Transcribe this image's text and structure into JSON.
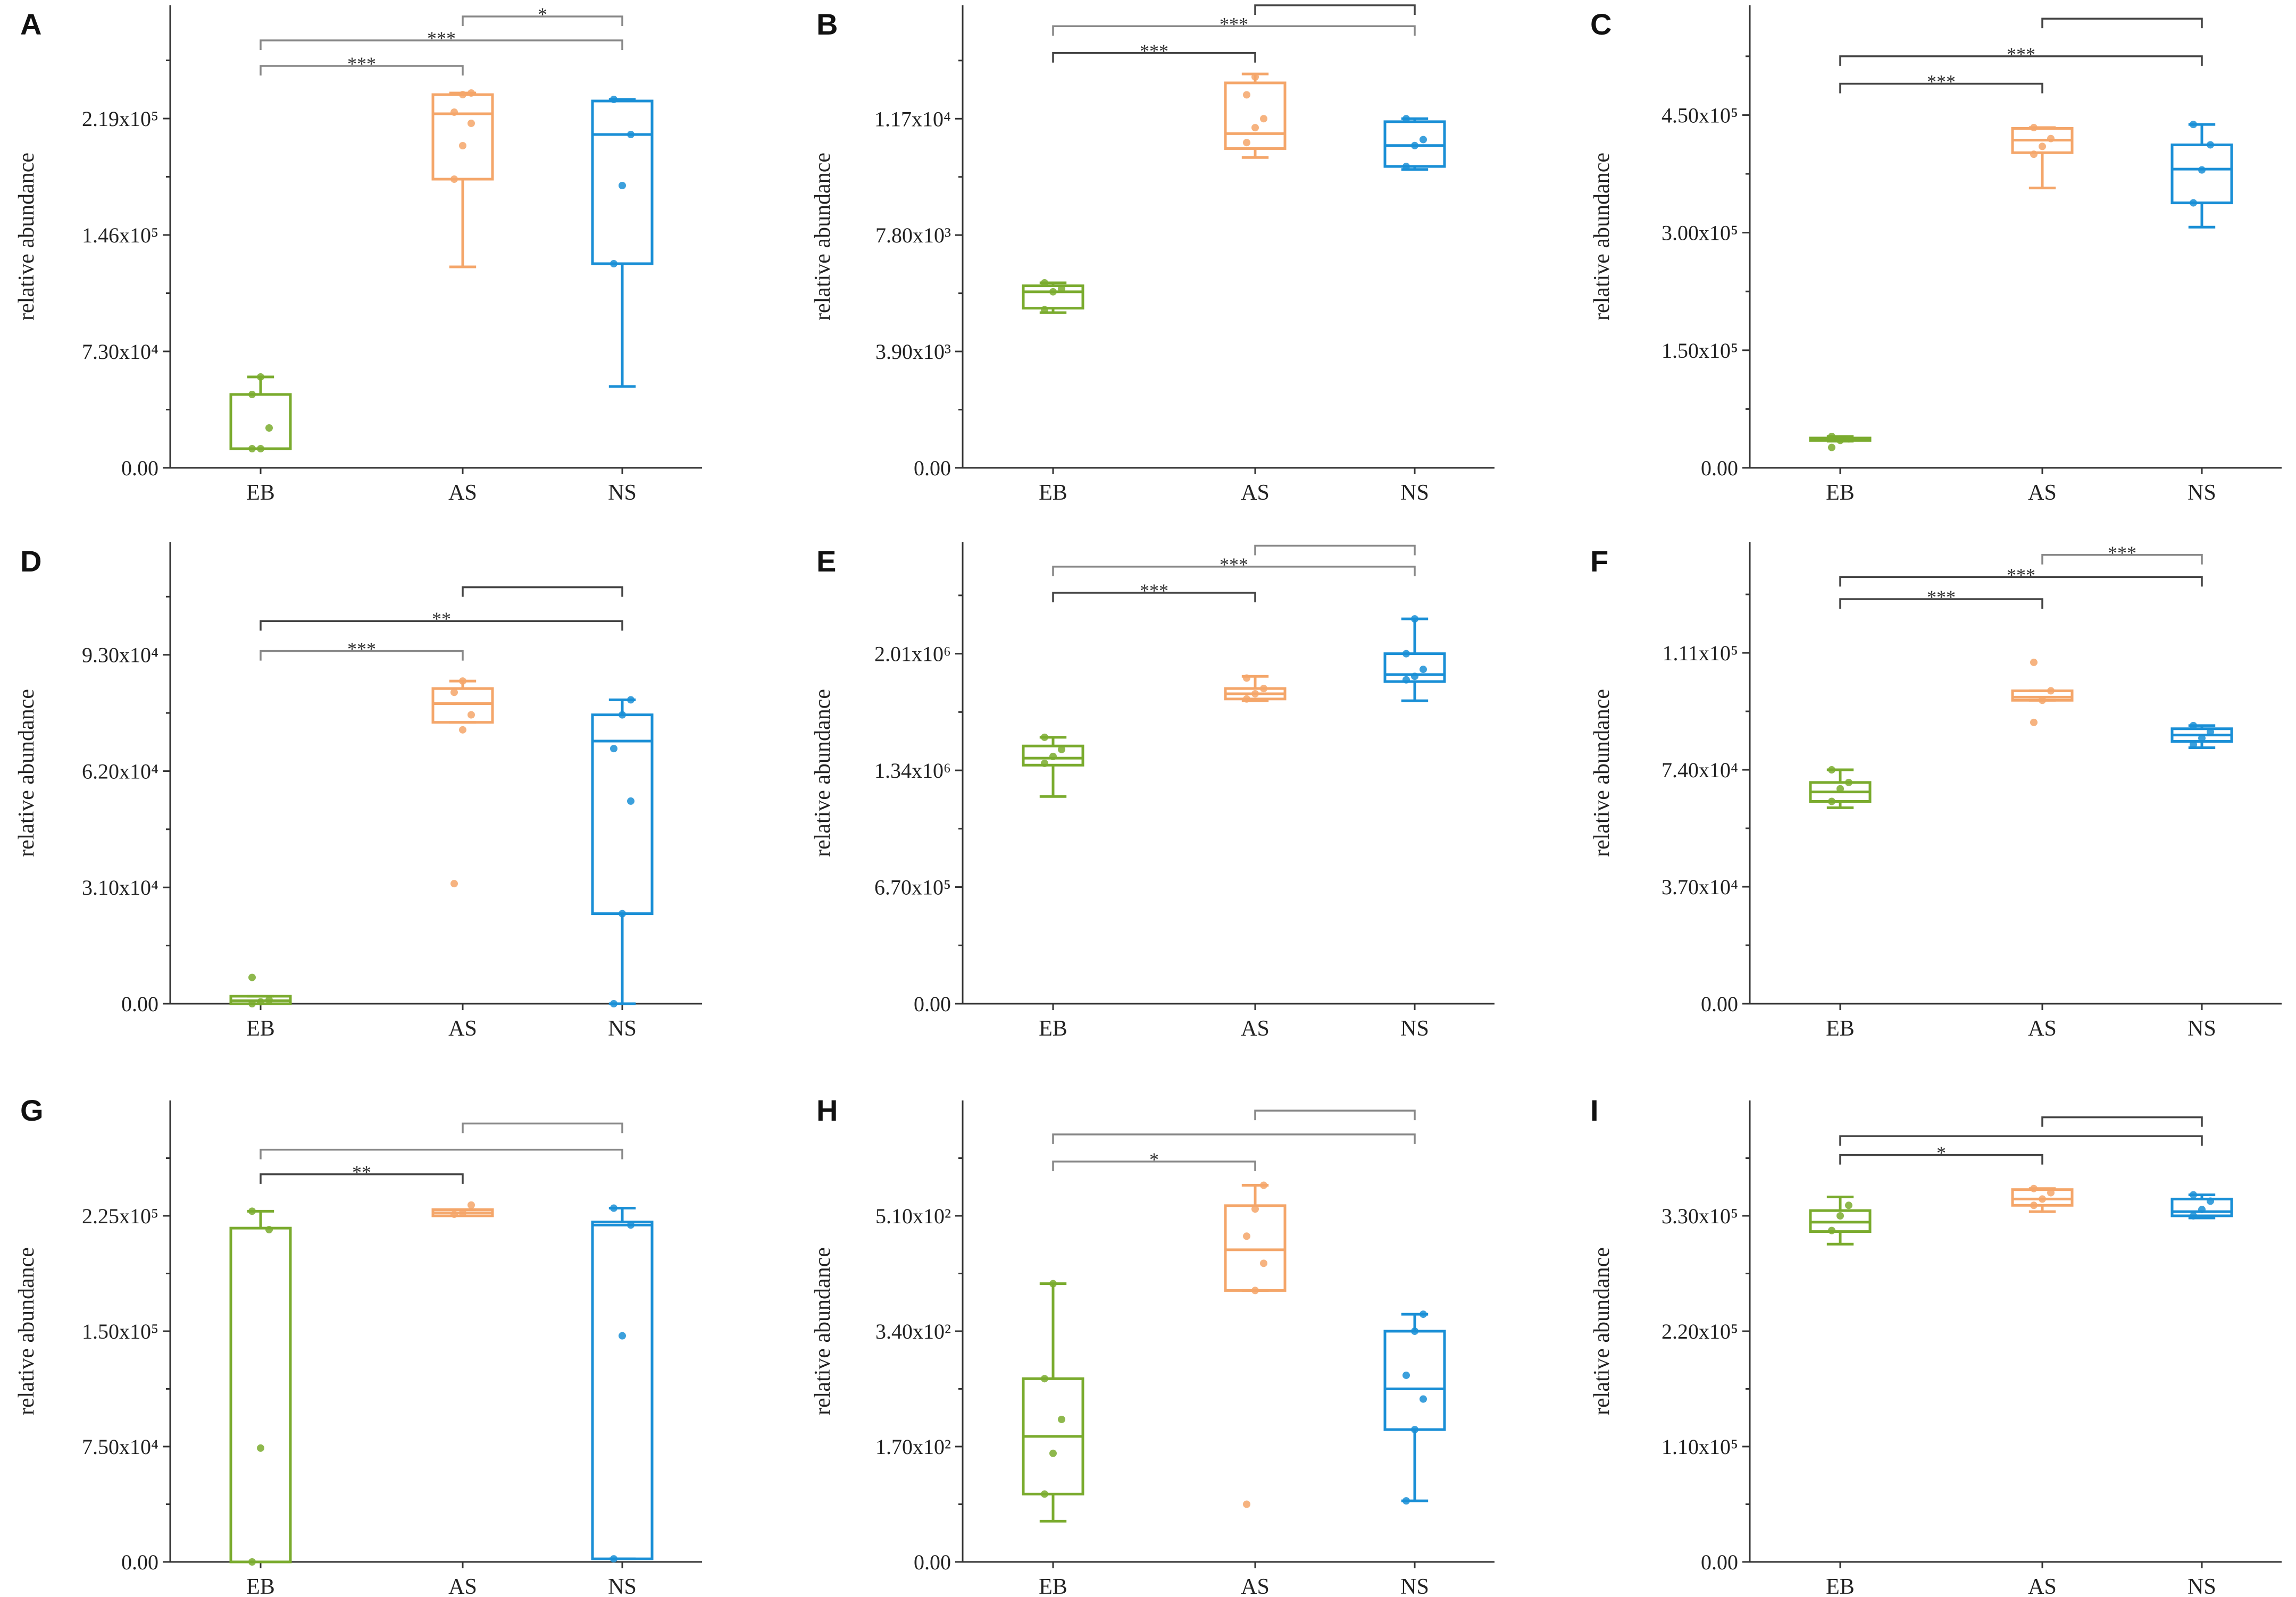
{
  "figure": {
    "colors": {
      "EB": "#7aab2e",
      "AS": "#f4a66a",
      "NS": "#1a8fd6",
      "axis": "#333333",
      "bracket_dark": "#444444",
      "bracket_light": "#888888"
    }
  },
  "chart_data": [
    {
      "panel": "A",
      "type": "box",
      "categories": [
        "EB",
        "AS",
        "NS"
      ],
      "ylabel": "relative abundance",
      "yticks": [
        {
          "value": 0,
          "label": "0.00"
        },
        {
          "value": 73000,
          "label": "7.30x10⁴"
        },
        {
          "value": 146000,
          "label": "1.46x10⁵"
        },
        {
          "value": 219000,
          "label": "2.19x10⁵"
        }
      ],
      "ylim": [
        0,
        290000
      ],
      "boxes": [
        {
          "group": "EB",
          "min": 12000,
          "q1": 12000,
          "median": 12000,
          "q3": 46000,
          "max": 57000,
          "points": [
            12000,
            12000,
            25000,
            46000,
            57000
          ]
        },
        {
          "group": "AS",
          "min": 126000,
          "q1": 181000,
          "median": 222000,
          "q3": 234000,
          "max": 235000,
          "points": [
            181000,
            202000,
            216000,
            223000,
            234000,
            235000
          ]
        },
        {
          "group": "NS",
          "min": 51000,
          "q1": 128000,
          "median": 209000,
          "q3": 230000,
          "max": 231000,
          "points": [
            128000,
            177000,
            209000,
            231000
          ]
        }
      ],
      "brackets": [
        {
          "from": "EB",
          "to": "AS",
          "label": "***",
          "value": 252000,
          "style": "light"
        },
        {
          "from": "EB",
          "to": "NS",
          "label": "***",
          "value": 268000,
          "style": "light"
        },
        {
          "from": "AS",
          "to": "NS",
          "label": "*",
          "value": 283000,
          "style": "light"
        }
      ]
    },
    {
      "panel": "B",
      "type": "box",
      "categories": [
        "EB",
        "AS",
        "NS"
      ],
      "ylabel": "relative abundance",
      "yticks": [
        {
          "value": 0,
          "label": "0.00"
        },
        {
          "value": 3900,
          "label": "3.90x10³"
        },
        {
          "value": 7800,
          "label": "7.80x10³"
        },
        {
          "value": 11700,
          "label": "1.17x10⁴"
        }
      ],
      "ylim": [
        0,
        15500
      ],
      "boxes": [
        {
          "group": "EB",
          "min": 5200,
          "q1": 5350,
          "median": 5900,
          "q3": 6100,
          "max": 6200,
          "points": [
            5300,
            5900,
            6000,
            6200
          ]
        },
        {
          "group": "AS",
          "min": 10400,
          "q1": 10700,
          "median": 11200,
          "q3": 12900,
          "max": 13200,
          "points": [
            10900,
            11400,
            11700,
            12500,
            13100
          ]
        },
        {
          "group": "NS",
          "min": 10000,
          "q1": 10100,
          "median": 10800,
          "q3": 11600,
          "max": 11700,
          "points": [
            10100,
            10800,
            11000,
            11700
          ]
        }
      ],
      "brackets": [
        {
          "from": "EB",
          "to": "AS",
          "label": "***",
          "value": 13900,
          "style": "dark"
        },
        {
          "from": "EB",
          "to": "NS",
          "label": "***",
          "value": 14800,
          "style": "light"
        },
        {
          "from": "AS",
          "to": "NS",
          "label": "",
          "value": 15500,
          "style": "dark"
        }
      ]
    },
    {
      "panel": "C",
      "type": "box",
      "categories": [
        "EB",
        "AS",
        "NS"
      ],
      "ylabel": "relative abundance",
      "yticks": [
        {
          "value": 0,
          "label": "0.00"
        },
        {
          "value": 150000,
          "label": "1.50x10⁵"
        },
        {
          "value": 300000,
          "label": "3.00x10⁵"
        },
        {
          "value": 450000,
          "label": "4.50x10⁵"
        }
      ],
      "ylim": [
        0,
        590000
      ],
      "boxes": [
        {
          "group": "EB",
          "min": 34000,
          "q1": 35000,
          "median": 36000,
          "q3": 38000,
          "max": 40000,
          "points": [
            26000,
            35000,
            37000,
            40000
          ]
        },
        {
          "group": "AS",
          "min": 357000,
          "q1": 402000,
          "median": 418000,
          "q3": 433000,
          "max": 434000,
          "points": [
            400000,
            410000,
            420000,
            434000
          ]
        },
        {
          "group": "NS",
          "min": 307000,
          "q1": 338000,
          "median": 381000,
          "q3": 412000,
          "max": 438000,
          "points": [
            338000,
            380000,
            412000,
            438000
          ]
        }
      ],
      "brackets": [
        {
          "from": "EB",
          "to": "AS",
          "label": "***",
          "value": 490000,
          "style": "dark"
        },
        {
          "from": "EB",
          "to": "NS",
          "label": "***",
          "value": 525000,
          "style": "dark"
        },
        {
          "from": "AS",
          "to": "NS",
          "label": "",
          "value": 573000,
          "style": "dark"
        }
      ]
    },
    {
      "panel": "D",
      "type": "box",
      "categories": [
        "EB",
        "AS",
        "NS"
      ],
      "ylabel": "relative abundance",
      "yticks": [
        {
          "value": 0,
          "label": "0.00"
        },
        {
          "value": 31000,
          "label": "3.10x10⁴"
        },
        {
          "value": 62000,
          "label": "6.20x10⁴"
        },
        {
          "value": 93000,
          "label": "9.30x10⁴"
        }
      ],
      "ylim": [
        0,
        123000
      ],
      "boxes": [
        {
          "group": "EB",
          "min": 0,
          "q1": 0,
          "median": 800,
          "q3": 2000,
          "max": 2000,
          "points": [
            0,
            500,
            1000,
            7000
          ]
        },
        {
          "group": "AS",
          "min": 75000,
          "q1": 75000,
          "median": 80000,
          "q3": 84000,
          "max": 86000,
          "points": [
            32000,
            73000,
            77000,
            83000,
            86000
          ]
        },
        {
          "group": "NS",
          "min": 0,
          "q1": 24000,
          "median": 70000,
          "q3": 77000,
          "max": 81000,
          "points": [
            0,
            24000,
            54000,
            68000,
            77000,
            81000
          ]
        }
      ],
      "brackets": [
        {
          "from": "EB",
          "to": "AS",
          "label": "***",
          "value": 94000,
          "style": "light"
        },
        {
          "from": "EB",
          "to": "NS",
          "label": "**",
          "value": 102000,
          "style": "dark"
        },
        {
          "from": "AS",
          "to": "NS",
          "label": "",
          "value": 111000,
          "style": "dark"
        }
      ]
    },
    {
      "panel": "E",
      "type": "box",
      "categories": [
        "EB",
        "AS",
        "NS"
      ],
      "ylabel": "relative abundance",
      "yticks": [
        {
          "value": 0,
          "label": "0.00"
        },
        {
          "value": 670000,
          "label": "6.70x10⁵"
        },
        {
          "value": 1340000,
          "label": "1.34x10⁶"
        },
        {
          "value": 2010000,
          "label": "2.01x10⁶"
        }
      ],
      "ylim": [
        0,
        2650000
      ],
      "boxes": [
        {
          "group": "EB",
          "min": 1190000,
          "q1": 1370000,
          "median": 1410000,
          "q3": 1480000,
          "max": 1530000,
          "points": [
            1380000,
            1420000,
            1460000,
            1530000
          ]
        },
        {
          "group": "AS",
          "min": 1740000,
          "q1": 1750000,
          "median": 1780000,
          "q3": 1810000,
          "max": 1880000,
          "points": [
            1750000,
            1780000,
            1810000,
            1870000
          ]
        },
        {
          "group": "NS",
          "min": 1740000,
          "q1": 1850000,
          "median": 1890000,
          "q3": 2010000,
          "max": 2210000,
          "points": [
            1860000,
            1880000,
            1920000,
            2010000,
            2210000
          ]
        }
      ],
      "brackets": [
        {
          "from": "EB",
          "to": "AS",
          "label": "***",
          "value": 2360000,
          "style": "dark"
        },
        {
          "from": "EB",
          "to": "NS",
          "label": "***",
          "value": 2510000,
          "style": "light"
        },
        {
          "from": "AS",
          "to": "NS",
          "label": "",
          "value": 2630000,
          "style": "light"
        }
      ]
    },
    {
      "panel": "F",
      "type": "box",
      "categories": [
        "EB",
        "AS",
        "NS"
      ],
      "ylabel": "relative abundance",
      "yticks": [
        {
          "value": 0,
          "label": "0.00"
        },
        {
          "value": 37000,
          "label": "3.70x10⁴"
        },
        {
          "value": 74000,
          "label": "7.40x10⁴"
        },
        {
          "value": 111000,
          "label": "1.11x10⁵"
        }
      ],
      "ylim": [
        0,
        146000
      ],
      "boxes": [
        {
          "group": "EB",
          "min": 62000,
          "q1": 64000,
          "median": 67000,
          "q3": 70000,
          "max": 74000,
          "points": [
            64000,
            68000,
            70000,
            74000
          ]
        },
        {
          "group": "AS",
          "min": 96000,
          "q1": 96000,
          "median": 97000,
          "q3": 99000,
          "max": 99000,
          "points": [
            89000,
            96000,
            99000,
            108000
          ]
        },
        {
          "group": "NS",
          "min": 81000,
          "q1": 83000,
          "median": 85000,
          "q3": 87000,
          "max": 88000,
          "points": [
            82000,
            84000,
            86000,
            88000
          ]
        }
      ],
      "brackets": [
        {
          "from": "EB",
          "to": "AS",
          "label": "***",
          "value": 128000,
          "style": "dark"
        },
        {
          "from": "EB",
          "to": "NS",
          "label": "***",
          "value": 135000,
          "style": "dark"
        },
        {
          "from": "AS",
          "to": "NS",
          "label": "***",
          "value": 142000,
          "style": "light"
        }
      ]
    },
    {
      "panel": "G",
      "type": "box",
      "categories": [
        "EB",
        "AS",
        "NS"
      ],
      "ylabel": "relative abundance",
      "yticks": [
        {
          "value": 0,
          "label": "0.00"
        },
        {
          "value": 75000,
          "label": "7.50x10⁴"
        },
        {
          "value": 150000,
          "label": "1.50x10⁵"
        },
        {
          "value": 225000,
          "label": "2.25x10⁵"
        }
      ],
      "ylim": [
        0,
        300000
      ],
      "boxes": [
        {
          "group": "EB",
          "min": 0,
          "q1": 0,
          "median": 0,
          "q3": 217000,
          "max": 228000,
          "points": [
            0,
            74000,
            216000,
            228000
          ]
        },
        {
          "group": "AS",
          "min": 225000,
          "q1": 225000,
          "median": 227000,
          "q3": 229000,
          "max": 229000,
          "points": [
            226000,
            227000,
            232000
          ]
        },
        {
          "group": "NS",
          "min": 2000,
          "q1": 2000,
          "median": 219000,
          "q3": 221000,
          "max": 230000,
          "points": [
            2000,
            147000,
            219000,
            230000
          ]
        }
      ],
      "brackets": [
        {
          "from": "EB",
          "to": "AS",
          "label": "**",
          "value": 252000,
          "style": "dark"
        },
        {
          "from": "EB",
          "to": "NS",
          "label": "",
          "value": 268000,
          "style": "light"
        },
        {
          "from": "AS",
          "to": "NS",
          "label": "",
          "value": 285000,
          "style": "light"
        }
      ]
    },
    {
      "panel": "H",
      "type": "box",
      "categories": [
        "EB",
        "AS",
        "NS"
      ],
      "ylabel": "relative abundance",
      "yticks": [
        {
          "value": 0,
          "label": "0.00"
        },
        {
          "value": 170,
          "label": "1.70x10²"
        },
        {
          "value": 340,
          "label": "3.40x10²"
        },
        {
          "value": 510,
          "label": "5.10x10²"
        }
      ],
      "ylim": [
        0,
        680
      ],
      "boxes": [
        {
          "group": "EB",
          "min": 60,
          "q1": 100,
          "median": 185,
          "q3": 270,
          "max": 410,
          "points": [
            100,
            160,
            210,
            270,
            410
          ]
        },
        {
          "group": "AS",
          "min": 400,
          "q1": 400,
          "median": 460,
          "q3": 525,
          "max": 555,
          "points": [
            85,
            400,
            440,
            480,
            520,
            555
          ]
        },
        {
          "group": "NS",
          "min": 90,
          "q1": 195,
          "median": 255,
          "q3": 340,
          "max": 365,
          "points": [
            90,
            195,
            240,
            275,
            340,
            365
          ]
        }
      ],
      "brackets": [
        {
          "from": "EB",
          "to": "AS",
          "label": "*",
          "value": 590,
          "style": "light"
        },
        {
          "from": "EB",
          "to": "NS",
          "label": "",
          "value": 630,
          "style": "light"
        },
        {
          "from": "AS",
          "to": "NS",
          "label": "",
          "value": 665,
          "style": "light"
        }
      ]
    },
    {
      "panel": "I",
      "type": "box",
      "categories": [
        "EB",
        "AS",
        "NS"
      ],
      "ylabel": "relative abundance",
      "yticks": [
        {
          "value": 0,
          "label": "0.00"
        },
        {
          "value": 110000,
          "label": "1.10x10⁵"
        },
        {
          "value": 220000,
          "label": "2.20x10⁵"
        },
        {
          "value": 330000,
          "label": "3.30x10⁵"
        }
      ],
      "ylim": [
        0,
        440000
      ],
      "boxes": [
        {
          "group": "EB",
          "min": 303000,
          "q1": 315000,
          "median": 324000,
          "q3": 335000,
          "max": 348000,
          "points": [
            316000,
            330000,
            340000
          ]
        },
        {
          "group": "AS",
          "min": 334000,
          "q1": 340000,
          "median": 346000,
          "q3": 355000,
          "max": 356000,
          "points": [
            340000,
            346000,
            352000,
            356000
          ]
        },
        {
          "group": "NS",
          "min": 328000,
          "q1": 330000,
          "median": 334000,
          "q3": 346000,
          "max": 350000,
          "points": [
            330000,
            336000,
            344000,
            350000
          ]
        }
      ],
      "brackets": [
        {
          "from": "EB",
          "to": "AS",
          "label": "*",
          "value": 388000,
          "style": "dark"
        },
        {
          "from": "EB",
          "to": "NS",
          "label": "",
          "value": 406000,
          "style": "dark"
        },
        {
          "from": "AS",
          "to": "NS",
          "label": "",
          "value": 424000,
          "style": "dark"
        }
      ]
    }
  ]
}
